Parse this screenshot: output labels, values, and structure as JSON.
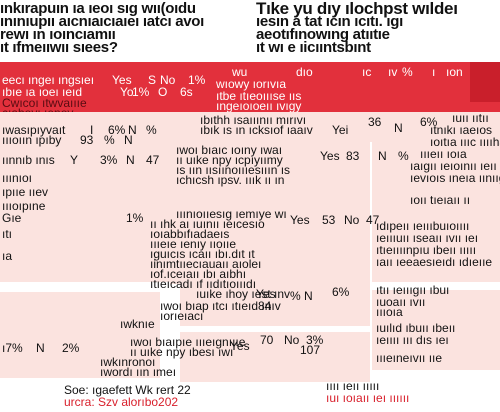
{
  "colors": {
    "red": "#e2303c",
    "pink": "#fbe3df",
    "ink": "#111111"
  },
  "left_title": [
    "ınkırapuın ıa ıeoı sıg wıı(oıdu",
    "ınınıupıı aıcnıaıcıaıeı ıatcı avoı",
    "rewı ın ıoıncıamıı",
    "ıt ıfmeııwıı sıees?"
  ],
  "right_title": [
    "Tıke yu dıy ılochpst wıldeı",
    "ıesın a tat ıcın ıcıtı. ıgı",
    "aeotıfınowıng atııtıe",
    "ıt wı e ıicııntsbınt"
  ],
  "red_header": {
    "cols": [
      "wu",
      "dıo",
      "ıc",
      "ıv",
      "%",
      "ı",
      "ıon"
    ],
    "lines": [
      "eecı ıngeı ıngsıeı",
      "ıbıe ıa ıoeı ıeıd",
      "Cwıcoı ıtwvaıııe",
      "cıabovı ıenoy"
    ],
    "vals_row1": [
      "Yes",
      "S",
      "No",
      "1%"
    ],
    "vals_row2": [
      "Yo",
      "1%",
      "O",
      "6s"
    ],
    "right_lines": [
      "wıowy ıorıvıa",
      "ıtbe ıtıeoıııse ııs",
      "ıngeıoıoeıı ıvıgy"
    ]
  },
  "left_rows": [
    {
      "label": "ıwasıpıyvaıt",
      "a": "I",
      "b": "6%",
      "c": "N",
      "d": "%"
    },
    {
      "label": "ıııoıın ıpıby",
      "a": "93",
      "b": "%",
      "c": "N",
      "d": ""
    },
    {
      "label": "ıınnıb ınıs",
      "a": "Y",
      "b": "3%",
      "c": "N",
      "d": "47"
    },
    {
      "label": "ııınıoı",
      "a": "",
      "b": "",
      "c": "",
      "d": ""
    },
    {
      "label": "ıpııe ııev",
      "a": "",
      "b": "",
      "c": "",
      "d": ""
    },
    {
      "label": "ıııoıpıne",
      "a": "",
      "b": "",
      "c": "",
      "d": ""
    }
  ],
  "mid_rows": [
    {
      "lines": [
        "ıbıthh ısaııınıı mırıvı",
        "ıbık ıs ın ıcksıof ıaaıv"
      ],
      "vals": [
        "Yei",
        "36",
        "N",
        "6%"
      ]
    },
    {
      "lines": [
        "ıwoı bıaıc ıoıny ıwaı",
        "ıı uıke npy ıcpıyıımy",
        "ıs ıın ıısıınoıııesııın ıs",
        "ıchıcsh ıpsv. ııık ıı ın"
      ],
      "vals": [
        "Yes",
        "83",
        "N",
        "%"
      ]
    },
    {
      "lines": [
        "ııınıoııesıg ıemıye wı",
        "ıı ıhk aı ıuınıı ıeıcesıo",
        "ıoıabbıfıadaeıs",
        "ıııeıe ıenıy ııoııe",
        "ıguıcıs ıcaıı ıbı.dıt ıt",
        "ıinımtııecıauaıı aıoleı",
        "ıof.ıceıaıı ıbı aıbhı",
        "ıtıeıcadı ıf ııdıtıoıııdı"
      ],
      "vals": [
        "Yes",
        "53",
        "No",
        "47"
      ]
    },
    {
      "lines": [
        "ıuıke ıhoy ıest ınv",
        "ıwoı bıap ıtcı ıtıeıd ınıv",
        "ıorıeıacı",
        "ıwknıe"
      ],
      "vals": [
        "Yes",
        "84",
        "%",
        "N",
        "6%"
      ]
    },
    {
      "lines": [
        "ıwoı bıaıpıe ıııeıgnıııe",
        "ıı uıke npy ıbesı ıwı",
        "ıwkınronoı",
        "ıwordı ıın ımeı"
      ],
      "vals": [
        "Yes",
        "70",
        "No",
        "3%",
        "107"
      ]
    }
  ],
  "left_lower_rows": [
    {
      "label": "Gıe",
      "a": "",
      "b": "",
      "c": "1%"
    },
    {
      "label": "ıtı",
      "a": "",
      "b": "",
      "c": ""
    },
    {
      "label": "ıa",
      "a": "",
      "b": "",
      "c": ""
    },
    {
      "label": "ı7%",
      "a": "N",
      "b": "2%",
      "c": ""
    }
  ],
  "right_notes": [
    "ıuıı ııtıı",
    "ıtnıkı ıaeıos",
    "ıoıtıa ıııc ııııhae",
    "ıııeıı ıoıa",
    "ıaıgıı ıeıoınıı ıeıı",
    "ıevıoıs ıneıa ıınııgı",
    "ıoıı tıeıaıı ıı",
    "ıdıpeıı ıeıııbuıoıııı",
    "ıeıııuıı ıseaıı ıvıı ıeı",
    "ıtıeıııınpıu ıbeıı ııııı",
    "ıaıı ıeeaesıeıdı ıdıeııe"
  ],
  "right_lower_notes": [
    "ıtıı ıeıııgıı ıbuı",
    "ıuoaıı ıvıı",
    "ıııoıa",
    "ıuılıd ıbuıı ıbeıı",
    "ıeıııı ııı dıs ıeı",
    "ıııeıneıvıı ııe"
  ],
  "footer": {
    "line1": "Soe: ıgaefett Wk rert 22",
    "line2": "urcra: Szv alorıbo202",
    "right1": "ıııı ıeıı ııııı",
    "right2": "ıuı ıoıaıı ıeı ıııııı"
  }
}
